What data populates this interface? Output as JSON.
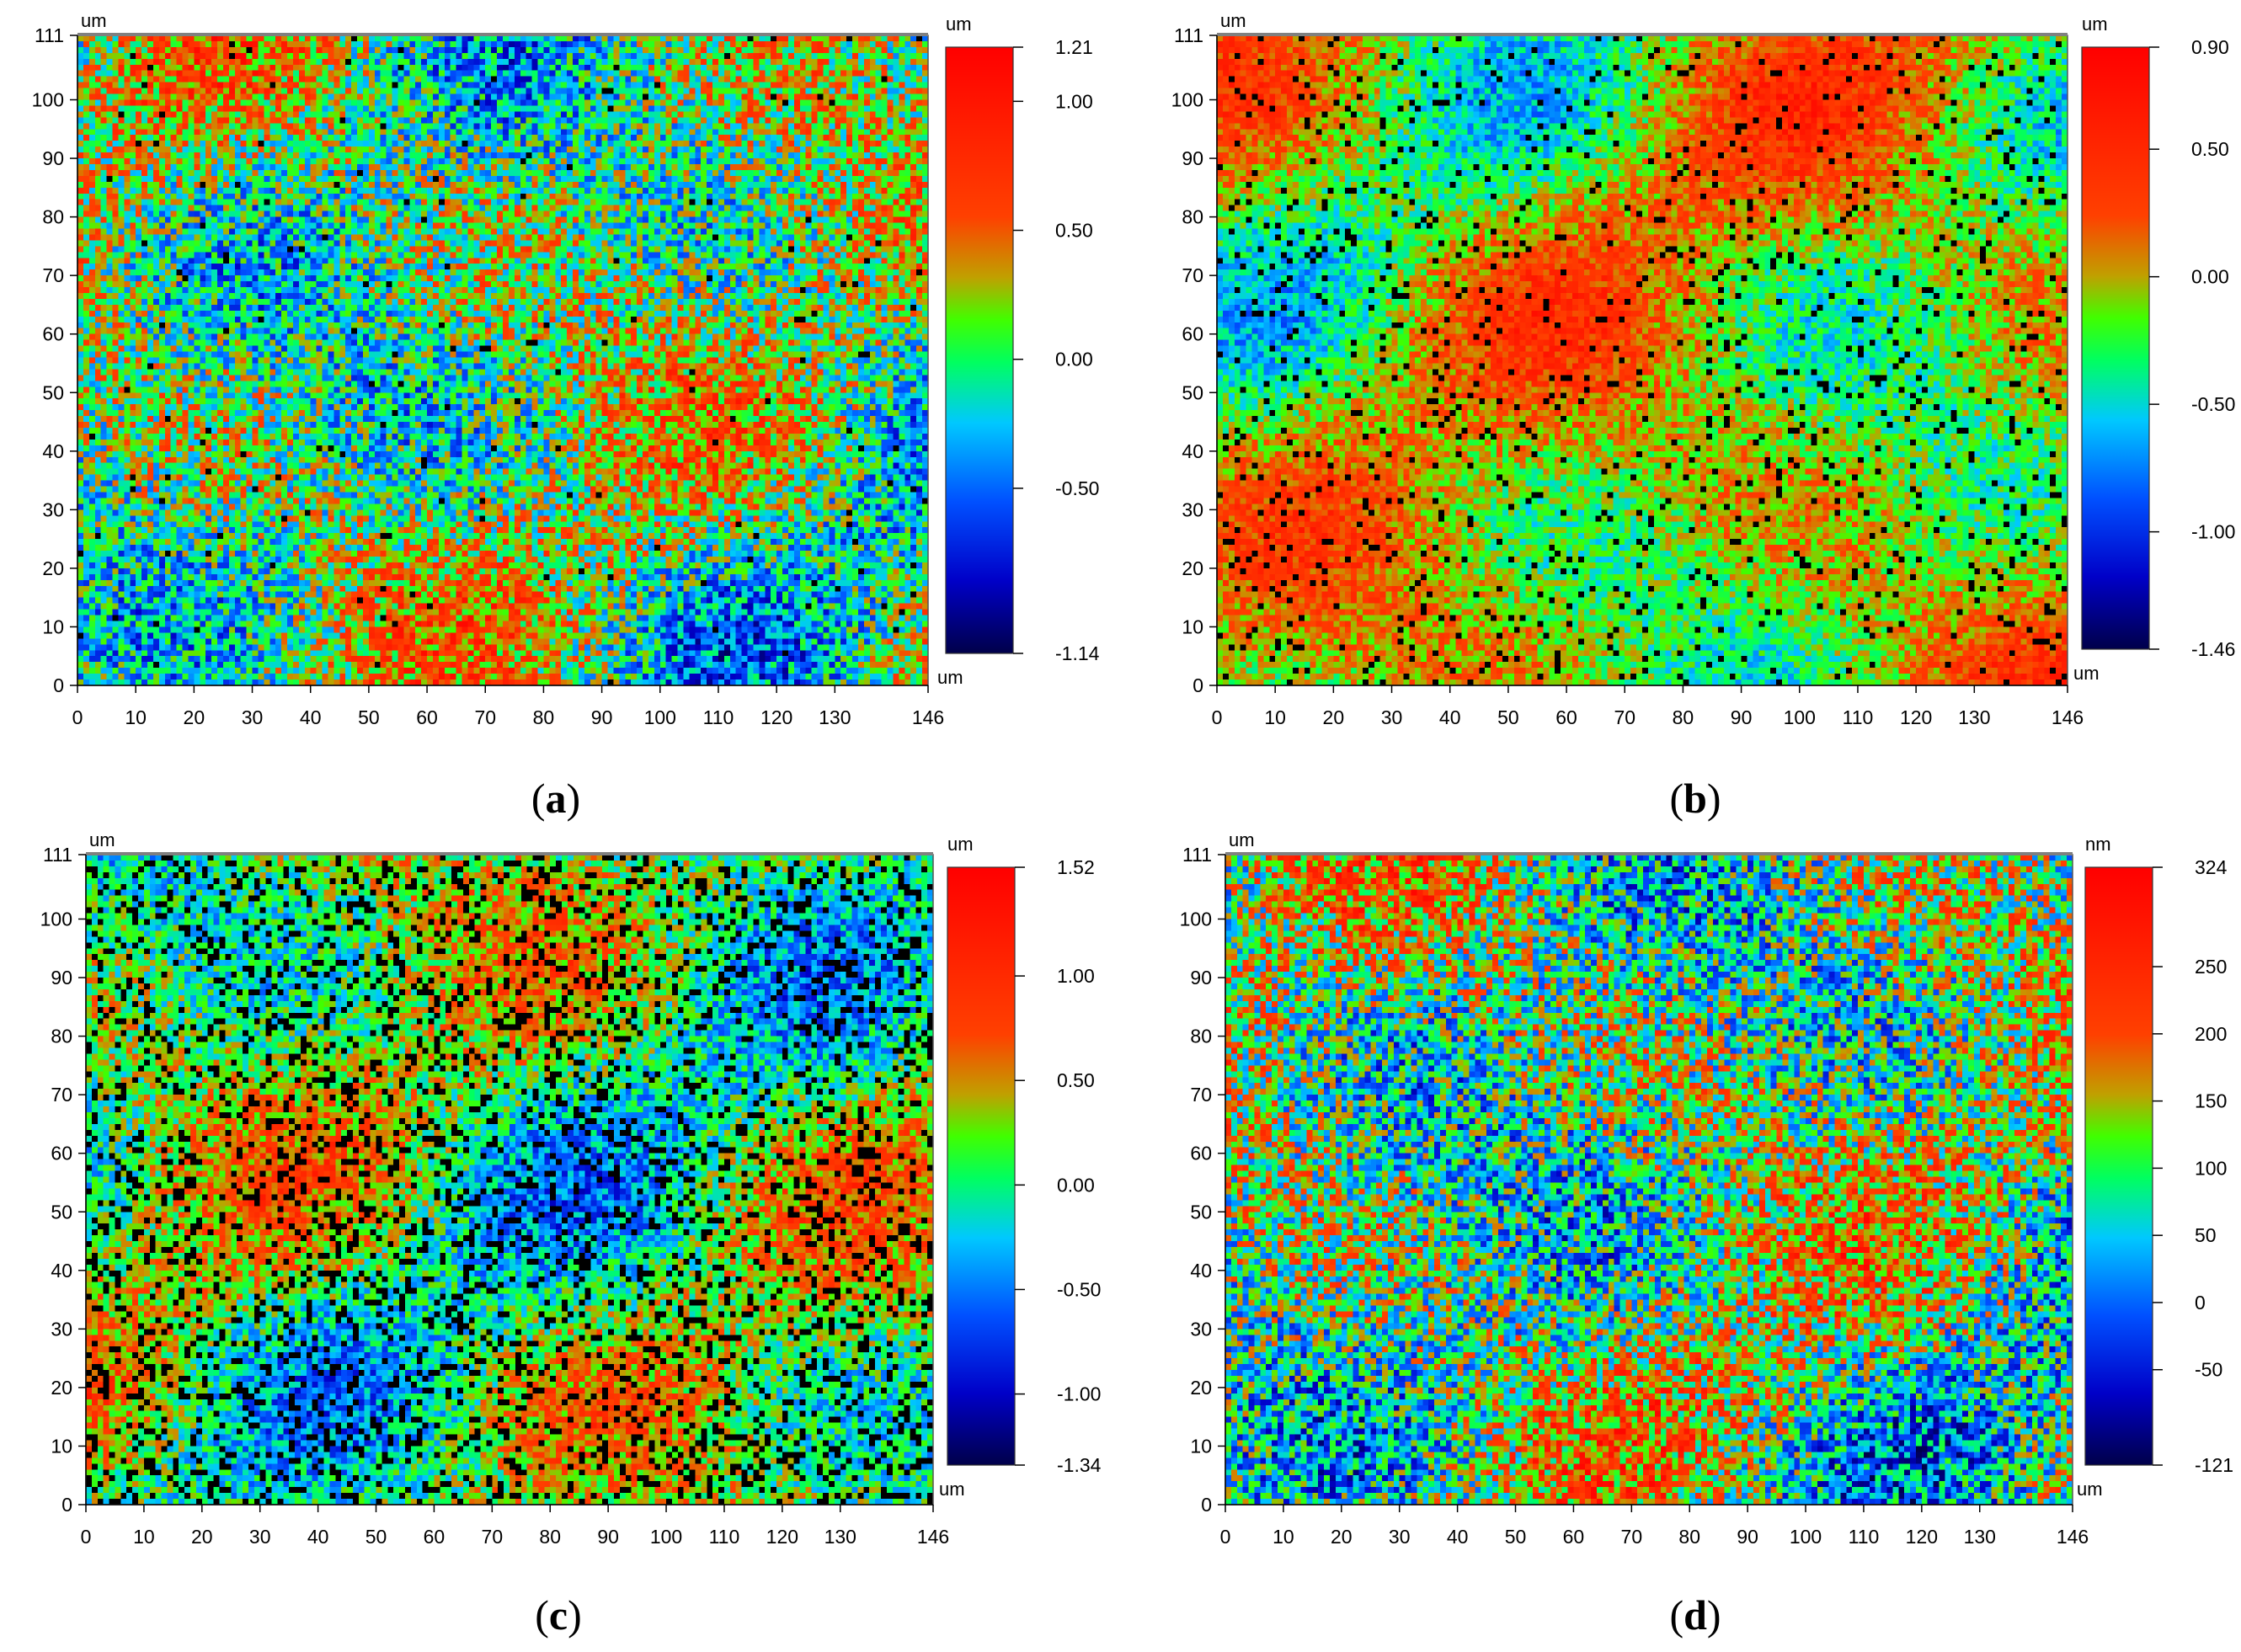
{
  "chart_data": [
    {
      "type": "heatmap",
      "panel_label": "a",
      "x_unit": "um",
      "y_unit": "um",
      "xlim": [
        0,
        146
      ],
      "ylim": [
        0,
        111
      ],
      "x_ticks": [
        0,
        10,
        20,
        30,
        40,
        50,
        60,
        70,
        80,
        90,
        100,
        110,
        120,
        130,
        146
      ],
      "y_ticks": [
        0,
        10,
        20,
        30,
        40,
        50,
        60,
        70,
        80,
        90,
        100,
        111
      ],
      "colorbar": {
        "unit_top": "um",
        "unit_bottom": "um",
        "min": -1.14,
        "max": 1.21,
        "ticks": [
          1.21,
          1.0,
          0.5,
          0.0,
          -0.5,
          -1.14
        ],
        "tick_labels": [
          "1.21",
          "1.00",
          "0.50",
          "0.00",
          "-0.50",
          "-1.14"
        ]
      },
      "texture": {
        "noise": 0.85,
        "dark_pits": 0.01,
        "bias": 0.02
      }
    },
    {
      "type": "heatmap",
      "panel_label": "b",
      "x_unit": "um",
      "y_unit": "um",
      "xlim": [
        0,
        146
      ],
      "ylim": [
        0,
        111
      ],
      "x_ticks": [
        0,
        10,
        20,
        30,
        40,
        50,
        60,
        70,
        80,
        90,
        100,
        110,
        120,
        130,
        146
      ],
      "y_ticks": [
        0,
        10,
        20,
        30,
        40,
        50,
        60,
        70,
        80,
        90,
        100,
        111
      ],
      "colorbar": {
        "unit_top": "um",
        "unit_bottom": "um",
        "min": -1.46,
        "max": 0.9,
        "ticks": [
          0.9,
          0.5,
          0.0,
          -0.5,
          -1.0,
          -1.46
        ],
        "tick_labels": [
          "0.90",
          "0.50",
          "0.00",
          "-0.50",
          "-1.00",
          "-1.46"
        ]
      },
      "texture": {
        "noise": 0.45,
        "dark_pits": 0.06,
        "bias": 0.3
      }
    },
    {
      "type": "heatmap",
      "panel_label": "c",
      "x_unit": "um",
      "y_unit": "um",
      "xlim": [
        0,
        146
      ],
      "ylim": [
        0,
        111
      ],
      "x_ticks": [
        0,
        10,
        20,
        30,
        40,
        50,
        60,
        70,
        80,
        90,
        100,
        110,
        120,
        130,
        146
      ],
      "y_ticks": [
        0,
        10,
        20,
        30,
        40,
        50,
        60,
        70,
        80,
        90,
        100,
        111
      ],
      "colorbar": {
        "unit_top": "um",
        "unit_bottom": "um",
        "min": -1.34,
        "max": 1.52,
        "ticks": [
          1.52,
          1.0,
          0.5,
          0.0,
          -0.5,
          -1.0,
          -1.34
        ],
        "tick_labels": [
          "1.52",
          "1.00",
          "0.50",
          "0.00",
          "-0.50",
          "-1.00",
          "-1.34"
        ]
      },
      "texture": {
        "noise": 0.6,
        "dark_pits": 0.18,
        "bias": 0.05
      }
    },
    {
      "type": "heatmap",
      "panel_label": "d",
      "x_unit": "um",
      "y_unit": "um",
      "xlim": [
        0,
        146
      ],
      "ylim": [
        0,
        111
      ],
      "x_ticks": [
        0,
        10,
        20,
        30,
        40,
        50,
        60,
        70,
        80,
        90,
        100,
        110,
        120,
        130,
        146
      ],
      "y_ticks": [
        0,
        10,
        20,
        30,
        40,
        50,
        60,
        70,
        80,
        90,
        100,
        111
      ],
      "colorbar": {
        "unit_top": "nm",
        "unit_bottom": "um",
        "min": -121,
        "max": 324,
        "ticks": [
          324,
          250,
          200,
          150,
          100,
          50,
          0,
          -50,
          -121
        ],
        "tick_labels": [
          "324",
          "250",
          "200",
          "150",
          "100",
          "50",
          "0",
          "-50",
          "-121"
        ]
      },
      "texture": {
        "noise": 1.0,
        "dark_pits": 0.0,
        "bias": 0.0
      }
    }
  ],
  "colormap": [
    "#00004a",
    "#0000c8",
    "#0050ff",
    "#00c8ff",
    "#00e080",
    "#00ff00",
    "#80e000",
    "#ff8000",
    "#ff2000",
    "#ff0000"
  ]
}
